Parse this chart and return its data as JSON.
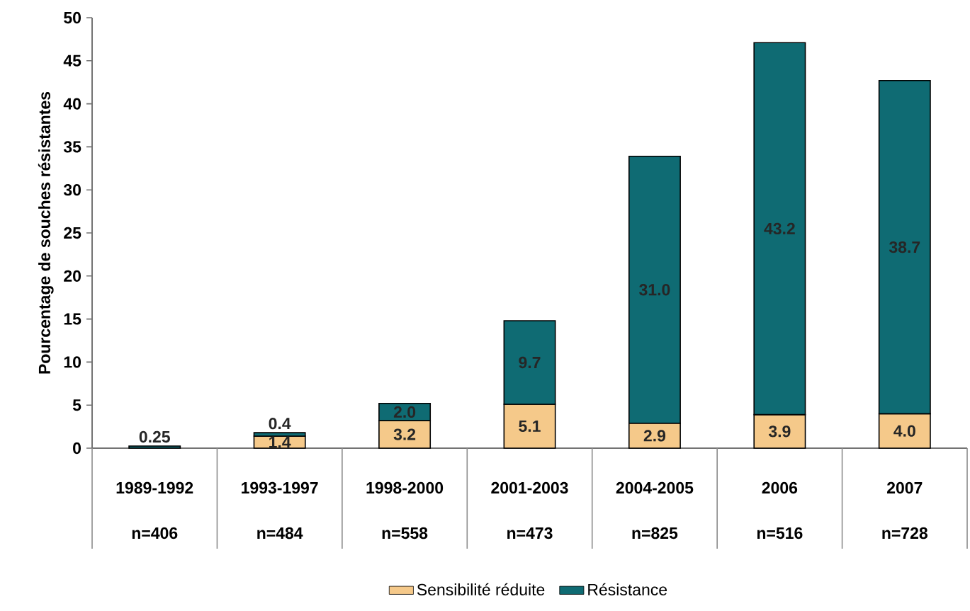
{
  "chart_data": {
    "type": "bar",
    "stacked": true,
    "ylabel": "Pourcentage de souches résistantes",
    "categories": [
      "1989-1992",
      "1993-1997",
      "1998-2000",
      "2001-2003",
      "2004-2005",
      "2006",
      "2007"
    ],
    "series": [
      {
        "name": "Sensibilité réduite",
        "color": "#f5c98a",
        "values": [
          null,
          1.4,
          3.2,
          5.1,
          2.9,
          3.9,
          4.0
        ],
        "value_labels": [
          null,
          "1.4",
          "3.2",
          "5.1",
          "2.9",
          "3.9",
          "4.0"
        ]
      },
      {
        "name": "Résistance",
        "color": "#0f6b73",
        "values": [
          0.25,
          0.4,
          2.0,
          9.7,
          31.0,
          43.2,
          38.7
        ],
        "value_labels": [
          "0.25",
          "0.4",
          "2.0",
          "9.7",
          "31.0",
          "43.2",
          "38.7"
        ]
      }
    ],
    "annotations": [
      "n=406",
      "n=484",
      "n=558",
      "n=473",
      "n=825",
      "n=516",
      "n=728"
    ],
    "ylim": [
      0,
      50
    ],
    "yticks": [
      0,
      5,
      10,
      15,
      20,
      25,
      30,
      35,
      40,
      45,
      50
    ],
    "legend": "bottom",
    "grid": false
  }
}
